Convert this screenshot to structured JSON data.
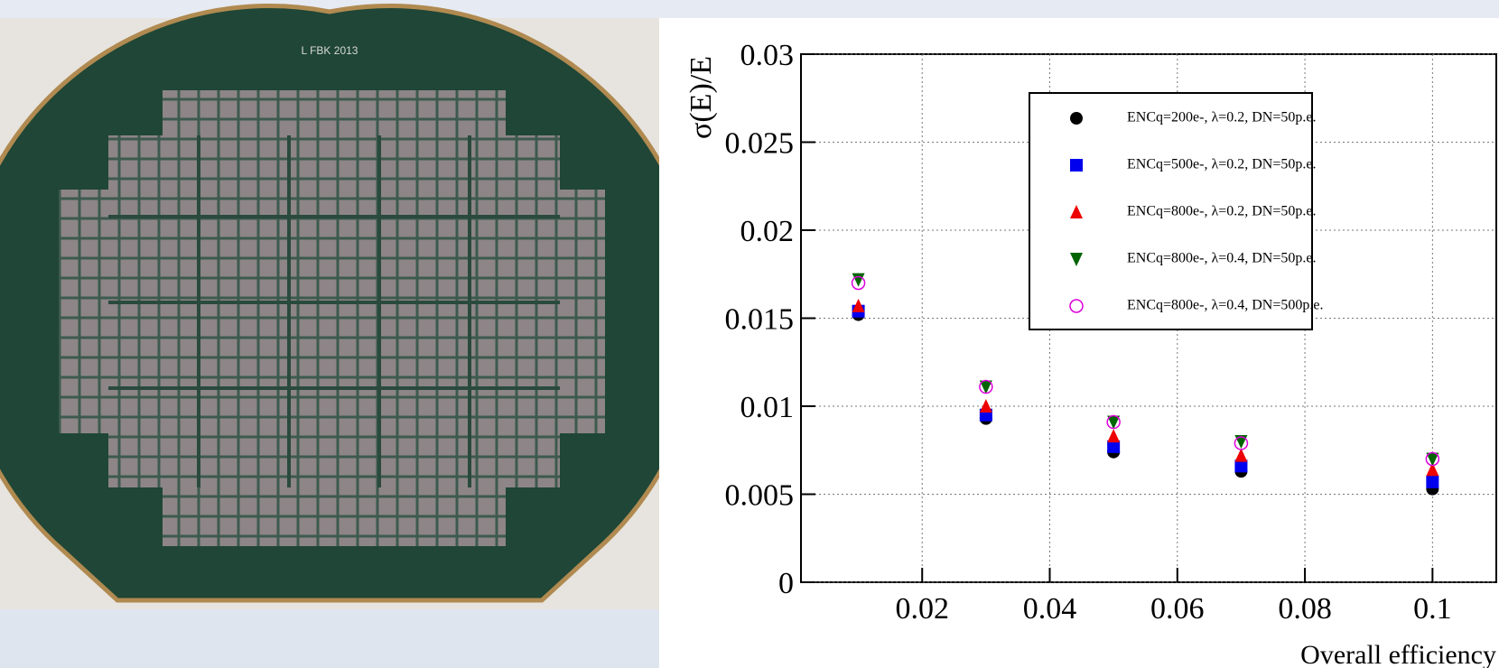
{
  "wafer_label": "L  FBK  2013",
  "chart_data": {
    "type": "scatter",
    "y_label": "σ(E)/E",
    "x_label": "Overall efficiency",
    "x": [
      0.01,
      0.03,
      0.05,
      0.07,
      0.1
    ],
    "series": [
      {
        "name": "ENCq=200e-, λ=0.2, DN=50p.e.",
        "color": "#000000",
        "marker": "circle",
        "values": [
          0.0152,
          0.0093,
          0.0074,
          0.0063,
          0.0053
        ]
      },
      {
        "name": "ENCq=500e-, λ=0.2, DN=50p.e.",
        "color": "#0000ee",
        "marker": "square",
        "values": [
          0.0154,
          0.0095,
          0.0077,
          0.0066,
          0.0057
        ]
      },
      {
        "name": "ENCq=800e-, λ=0.2, DN=50p.e.",
        "color": "#ee0000",
        "marker": "triangle",
        "values": [
          0.0157,
          0.01,
          0.0083,
          0.0072,
          0.0064
        ]
      },
      {
        "name": "ENCq=800e-, λ=0.4, DN=50p.e.",
        "color": "#006400",
        "marker": "triangle-down",
        "values": [
          0.0172,
          0.0111,
          0.0091,
          0.008,
          0.007
        ]
      },
      {
        "name": "ENCq=800e-, λ=0.4, DN=500p.e.",
        "color": "#dd00dd",
        "marker": "open-circle",
        "values": [
          0.017,
          0.0111,
          0.0091,
          0.0079,
          0.007
        ]
      }
    ],
    "xlim": [
      0.001,
      0.11
    ],
    "ylim": [
      0,
      0.03
    ],
    "xticks": [
      0.02,
      0.04,
      0.06,
      0.08,
      0.1
    ],
    "yticks": [
      0,
      0.005,
      0.01,
      0.015,
      0.02,
      0.025,
      0.03
    ],
    "grid": true
  }
}
